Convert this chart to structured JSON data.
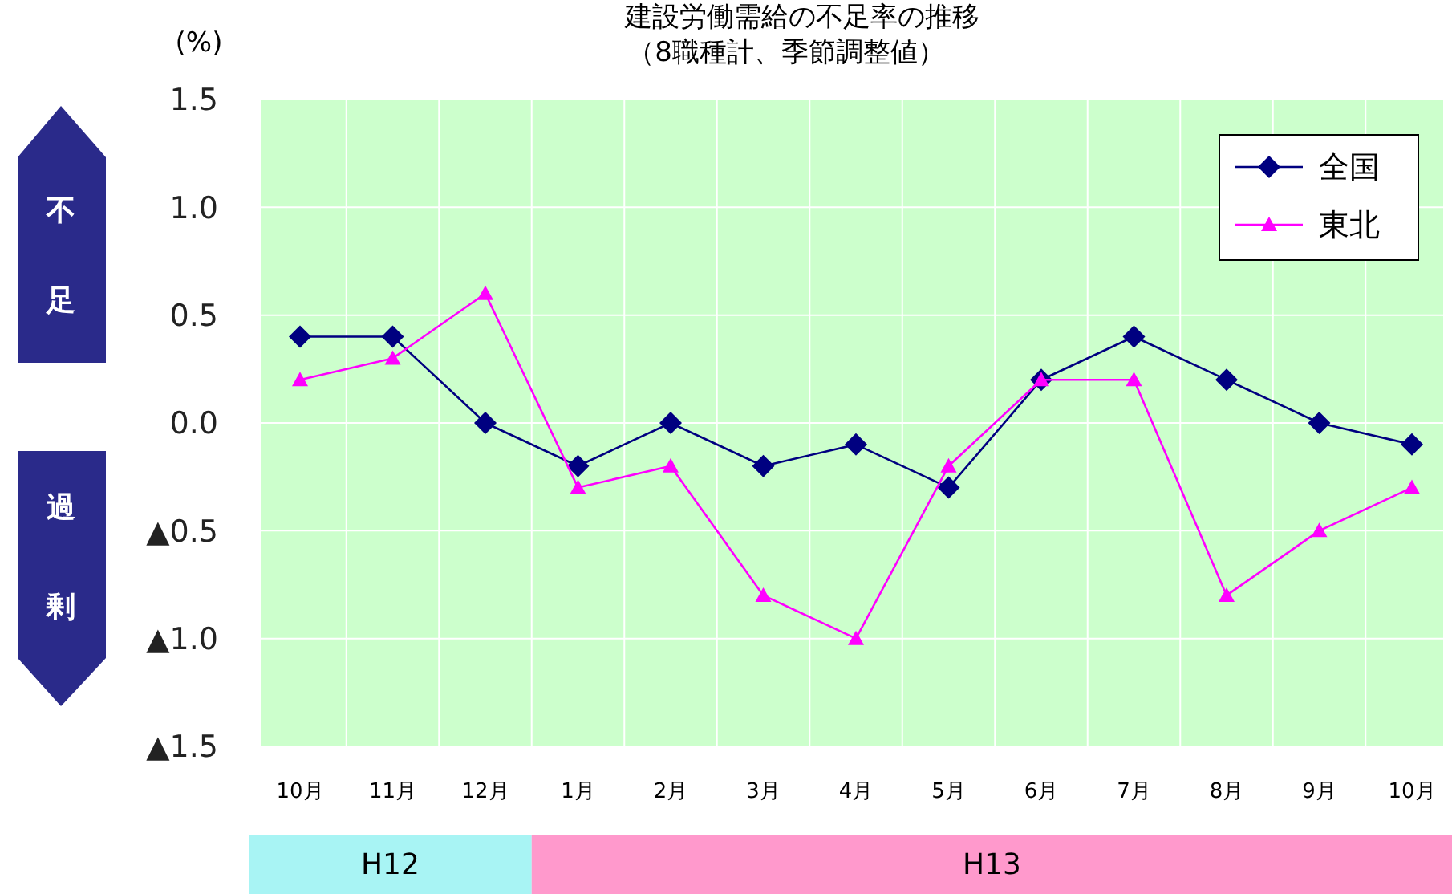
{
  "chart_data": {
    "type": "line",
    "title": "建設労働需給の不足率の推移",
    "subtitle": "（8職種計、季節調整値）",
    "ylabel": "(%)",
    "categories": [
      "10月",
      "11月",
      "12月",
      "1月",
      "2月",
      "3月",
      "4月",
      "5月",
      "6月",
      "7月",
      "8月",
      "9月",
      "10月"
    ],
    "series": [
      {
        "name": "全国",
        "color": "#000080",
        "marker": "diamond",
        "values": [
          0.4,
          0.4,
          0.0,
          -0.2,
          0.0,
          -0.2,
          -0.1,
          -0.3,
          0.2,
          0.4,
          0.2,
          0.0,
          -0.1
        ]
      },
      {
        "name": "東北",
        "color": "#ff00ff",
        "marker": "triangle",
        "values": [
          0.2,
          0.3,
          0.6,
          -0.3,
          -0.2,
          -0.8,
          -1.0,
          -0.2,
          0.2,
          0.2,
          -0.8,
          -0.5,
          -0.3
        ]
      }
    ],
    "ylim": [
      -1.5,
      1.5
    ],
    "yticks": [
      {
        "value": -1.5,
        "label": "▲1.5"
      },
      {
        "value": -1.0,
        "label": "▲1.0"
      },
      {
        "value": -0.5,
        "label": "▲0.5"
      },
      {
        "value": 0,
        "label": "0.0"
      },
      {
        "value": 0.5,
        "label": "0.5"
      },
      {
        "value": 1.0,
        "label": "1.0"
      },
      {
        "value": 1.5,
        "label": "1.5"
      }
    ],
    "grid": true,
    "legend": "top right",
    "annotations": [
      "不足",
      "過剰",
      "H12",
      "H13"
    ]
  }
}
